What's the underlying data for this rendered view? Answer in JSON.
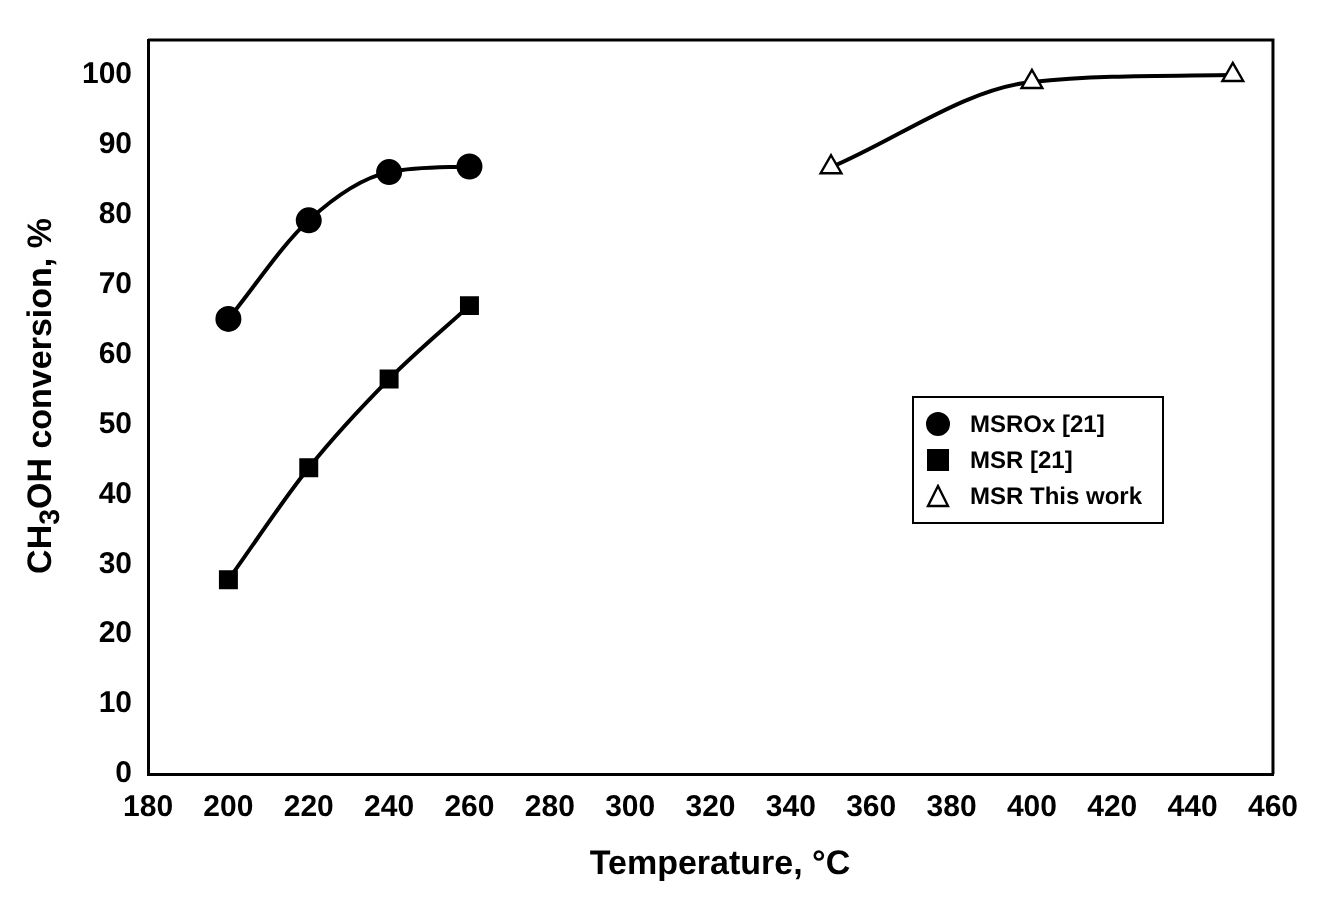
{
  "chart_data": {
    "type": "line",
    "xlabel": "Temperature, °C",
    "ylabel": "CH$_{3}$OH conversion, %",
    "xlim": [
      180,
      460
    ],
    "xticks": [
      180,
      200,
      220,
      240,
      260,
      280,
      300,
      320,
      340,
      360,
      380,
      400,
      420,
      440,
      460
    ],
    "ylim": [
      0,
      105
    ],
    "yticks": [
      0,
      10,
      20,
      30,
      40,
      50,
      60,
      70,
      80,
      90,
      100
    ],
    "grid": false,
    "legend": "right",
    "series": [
      {
        "name": "MSROx [21]",
        "color": "#000000",
        "marker": "circle",
        "x": [
          200,
          220,
          240,
          260
        ],
        "values": [
          65.1,
          79.2,
          86.1,
          86.9
        ]
      },
      {
        "name": "MSR [21]",
        "color": "#000000",
        "marker": "square",
        "x": [
          200,
          220,
          240,
          260
        ],
        "values": [
          27.8,
          43.8,
          56.5,
          67.0
        ]
      },
      {
        "name": "MSR This work",
        "color": "#000000",
        "marker": "triangle",
        "x": [
          350,
          400,
          450
        ],
        "values": [
          86.8,
          99,
          100
        ]
      }
    ]
  }
}
